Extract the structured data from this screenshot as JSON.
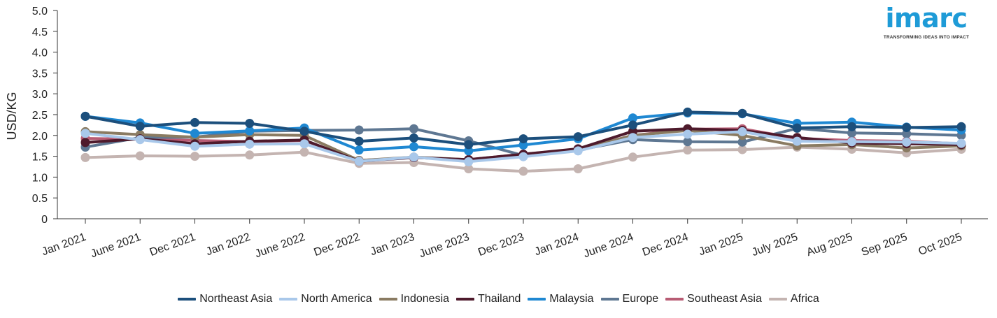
{
  "chart_data": {
    "type": "line",
    "title": "",
    "xlabel": "",
    "ylabel": "USD/KG",
    "ylim": [
      0,
      5
    ],
    "yticks": [
      "0",
      "0.5",
      "1.0",
      "1.5",
      "2.0",
      "2.5",
      "3.0",
      "3.5",
      "4.0",
      "4.5",
      "5.0"
    ],
    "grid": false,
    "legend_position": "bottom",
    "categories": [
      "Jan 2021",
      "June 2021",
      "Dec 2021",
      "Jan 2022",
      "June 2022",
      "Dec 2022",
      "Jan 2023",
      "June 2023",
      "Dec 2023",
      "Jan 2024",
      "June 2024",
      "Dec 2024",
      "Jan 2025",
      "July 2025",
      "Aug 2025",
      "Sep 2025",
      "Oct 2025"
    ],
    "series": [
      {
        "name": "Africa",
        "color": "#c4b4b1",
        "values": [
          1.47,
          1.51,
          1.5,
          1.53,
          1.6,
          1.33,
          1.35,
          1.2,
          1.14,
          1.2,
          1.48,
          1.65,
          1.66,
          1.72,
          1.67,
          1.58,
          1.67
        ]
      },
      {
        "name": "Southeast Asia",
        "color": "#b85c74",
        "values": [
          1.93,
          1.91,
          1.88,
          1.85,
          1.88,
          1.4,
          1.47,
          1.42,
          1.55,
          1.67,
          2.0,
          2.15,
          2.16,
          1.93,
          1.88,
          1.86,
          1.8
        ]
      },
      {
        "name": "Europe",
        "color": "#5e7792",
        "values": [
          1.72,
          1.95,
          1.96,
          2.1,
          2.12,
          2.13,
          2.16,
          1.87,
          1.52,
          1.65,
          1.9,
          1.85,
          1.84,
          2.17,
          2.06,
          2.04,
          2.0
        ]
      },
      {
        "name": "Indonesia",
        "color": "#8a7b62",
        "values": [
          2.09,
          2.02,
          1.96,
          2.02,
          2.0,
          1.4,
          1.48,
          1.42,
          1.52,
          1.66,
          2.0,
          2.12,
          2.0,
          1.75,
          1.78,
          1.7,
          1.75
        ]
      },
      {
        "name": "Thailand",
        "color": "#4e1a2c",
        "values": [
          1.83,
          1.92,
          1.8,
          1.86,
          1.89,
          1.38,
          1.47,
          1.42,
          1.55,
          1.68,
          2.1,
          2.16,
          2.12,
          1.95,
          1.82,
          1.8,
          1.78
        ]
      },
      {
        "name": "North America",
        "color": "#a9c8ea",
        "values": [
          2.05,
          1.9,
          1.74,
          1.79,
          1.8,
          1.38,
          1.48,
          1.37,
          1.49,
          1.63,
          1.95,
          2.03,
          2.09,
          1.86,
          1.85,
          1.84,
          1.81
        ]
      },
      {
        "name": "Malaysia",
        "color": "#1f88d2",
        "values": [
          2.46,
          2.3,
          2.05,
          2.11,
          2.18,
          1.65,
          1.73,
          1.63,
          1.77,
          1.92,
          2.42,
          2.54,
          2.52,
          2.29,
          2.32,
          2.2,
          2.13
        ]
      },
      {
        "name": "Northeast Asia",
        "color": "#1c4f7c",
        "values": [
          2.46,
          2.22,
          2.31,
          2.29,
          2.1,
          1.86,
          1.94,
          1.78,
          1.92,
          1.97,
          2.25,
          2.56,
          2.53,
          2.18,
          2.21,
          2.19,
          2.21
        ]
      }
    ],
    "legend_order": [
      "Northeast Asia",
      "North America",
      "Indonesia",
      "Thailand",
      "Malaysia",
      "Europe",
      "Southeast Asia",
      "Africa"
    ]
  },
  "logo": {
    "word": "imarc",
    "tagline": "TRANSFORMING IDEAS INTO IMPACT"
  }
}
